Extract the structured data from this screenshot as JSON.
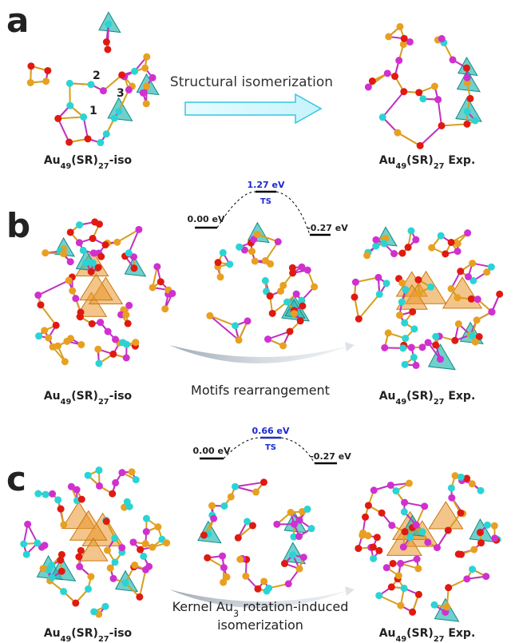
{
  "panels": [
    {
      "label": "a",
      "left_caption": {
        "parts": [
          "Au",
          "49",
          "(SR)",
          "27",
          "-iso"
        ]
      },
      "right_caption": {
        "parts": [
          "Au",
          "49",
          "(SR)",
          "27",
          " Exp."
        ]
      },
      "arrow_text": "Structural isomerization",
      "site_labels": [
        "1",
        "2",
        "3"
      ]
    },
    {
      "label": "b",
      "energy": {
        "start": "0.00 eV",
        "ts": "1.27 eV",
        "ts_label": "TS",
        "end": "-0.27 eV"
      },
      "center_caption": {
        "lines": [
          {
            "parts": [
              "Motifs rearrangement"
            ]
          }
        ]
      },
      "left_caption": {
        "parts": [
          "Au",
          "49",
          "(SR)",
          "27",
          "-iso"
        ]
      },
      "right_caption": {
        "parts": [
          "Au",
          "49",
          "(SR)",
          "27",
          " Exp."
        ]
      }
    },
    {
      "label": "c",
      "energy": {
        "start": "0.00 eV",
        "ts": "0.66 eV",
        "ts_label": "TS",
        "end": "-0.27 eV"
      },
      "center_caption": {
        "lines": [
          {
            "parts": [
              "Kernel Au",
              "3",
              " rotation-induced"
            ]
          },
          {
            "parts": [
              "isomerization"
            ]
          }
        ]
      },
      "left_caption": {
        "parts": [
          "Au",
          "49",
          "(SR)",
          "27",
          "-iso"
        ]
      },
      "right_caption": {
        "parts": [
          "Au",
          "49",
          "(SR)",
          "27",
          " Exp."
        ]
      }
    }
  ]
}
